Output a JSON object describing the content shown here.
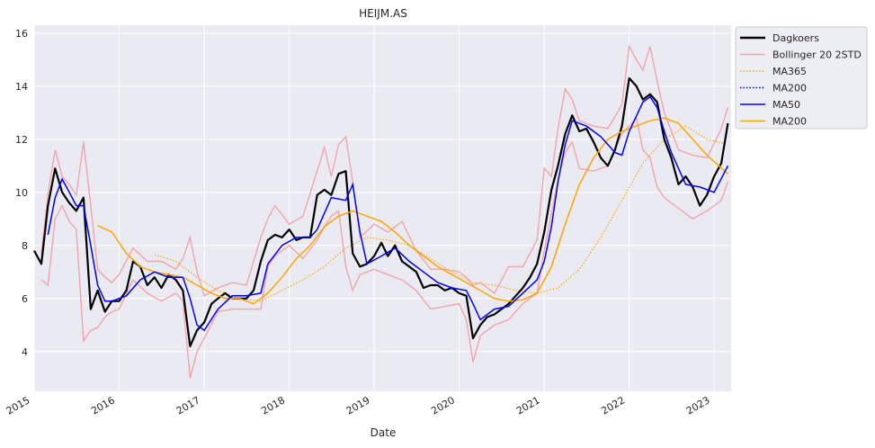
{
  "chart_data": {
    "type": "line",
    "title": "HEIJM.AS",
    "xlabel": "Date",
    "ylabel": "",
    "xlim": [
      "2015-01-01",
      "2023-03-15"
    ],
    "ylim": [
      2.5,
      16.3
    ],
    "x_ticks": [
      "2015",
      "2016",
      "2017",
      "2018",
      "2019",
      "2020",
      "2021",
      "2022",
      "2023"
    ],
    "y_ticks": [
      4,
      6,
      8,
      10,
      12,
      14,
      16
    ],
    "grid": true,
    "legend_position": "upper-right-outside",
    "legend": [
      {
        "label": "Dagkoers",
        "color": "#000000",
        "style": "solid-thick"
      },
      {
        "label": "Bollinger 20 2STD",
        "color": "#f4a4a8",
        "style": "solid"
      },
      {
        "label": "MA365",
        "color": "#ffa500",
        "style": "dotted"
      },
      {
        "label": "MA200",
        "color": "#0000ff",
        "style": "dotted"
      },
      {
        "label": "MA50",
        "color": "#0000ff",
        "style": "solid"
      },
      {
        "label": "MA200",
        "color": "#ffa500",
        "style": "solid"
      }
    ],
    "series": [
      {
        "name": "Dagkoers",
        "color": "#000000",
        "x": [
          "2015-01-01",
          "2015-02-01",
          "2015-03-01",
          "2015-04-01",
          "2015-05-01",
          "2015-06-01",
          "2015-07-01",
          "2015-08-01",
          "2015-09-01",
          "2015-10-01",
          "2015-11-01",
          "2015-12-01",
          "2016-01-01",
          "2016-02-01",
          "2016-03-01",
          "2016-04-01",
          "2016-05-01",
          "2016-06-01",
          "2016-07-01",
          "2016-08-01",
          "2016-09-01",
          "2016-10-01",
          "2016-11-01",
          "2016-12-01",
          "2017-01-01",
          "2017-02-01",
          "2017-03-01",
          "2017-04-01",
          "2017-05-01",
          "2017-06-01",
          "2017-07-01",
          "2017-08-01",
          "2017-09-01",
          "2017-10-01",
          "2017-11-01",
          "2017-12-01",
          "2018-01-01",
          "2018-02-01",
          "2018-03-01",
          "2018-04-01",
          "2018-05-01",
          "2018-06-01",
          "2018-07-01",
          "2018-08-01",
          "2018-09-01",
          "2018-10-01",
          "2018-11-01",
          "2018-12-01",
          "2019-01-01",
          "2019-02-01",
          "2019-03-01",
          "2019-04-01",
          "2019-05-01",
          "2019-06-01",
          "2019-07-01",
          "2019-08-01",
          "2019-09-01",
          "2019-10-01",
          "2019-11-01",
          "2019-12-01",
          "2020-01-01",
          "2020-02-01",
          "2020-03-01",
          "2020-04-01",
          "2020-05-01",
          "2020-06-01",
          "2020-07-01",
          "2020-08-01",
          "2020-09-01",
          "2020-10-01",
          "2020-11-01",
          "2020-12-01",
          "2021-01-01",
          "2021-02-01",
          "2021-03-01",
          "2021-04-01",
          "2021-05-01",
          "2021-06-01",
          "2021-07-01",
          "2021-08-01",
          "2021-09-01",
          "2021-10-01",
          "2021-11-01",
          "2021-12-01",
          "2022-01-01",
          "2022-02-01",
          "2022-03-01",
          "2022-04-01",
          "2022-05-01",
          "2022-06-01",
          "2022-07-01",
          "2022-08-01",
          "2022-09-01",
          "2022-10-01",
          "2022-11-01",
          "2022-12-01",
          "2023-01-01",
          "2023-02-01",
          "2023-03-01"
        ],
        "y": [
          7.8,
          7.3,
          9.5,
          10.9,
          10.0,
          9.6,
          9.3,
          9.8,
          5.6,
          6.3,
          5.5,
          5.9,
          5.9,
          6.3,
          7.4,
          7.2,
          6.5,
          6.8,
          6.4,
          6.9,
          6.7,
          6.3,
          4.2,
          4.8,
          5.1,
          5.8,
          6.0,
          6.2,
          6.0,
          6.0,
          6.0,
          6.3,
          7.4,
          8.2,
          8.4,
          8.3,
          8.6,
          8.2,
          8.3,
          8.3,
          9.9,
          10.1,
          9.9,
          10.7,
          10.8,
          7.7,
          7.2,
          7.3,
          7.6,
          8.1,
          7.6,
          8.0,
          7.4,
          7.2,
          7.0,
          6.4,
          6.5,
          6.5,
          6.3,
          6.4,
          6.2,
          6.1,
          4.5,
          5.0,
          5.3,
          5.4,
          5.6,
          5.8,
          6.1,
          6.4,
          6.8,
          7.3,
          8.5,
          10.1,
          11.0,
          12.2,
          12.9,
          12.3,
          12.4,
          11.9,
          11.3,
          11.0,
          11.6,
          12.5,
          14.3,
          14.0,
          13.5,
          13.7,
          13.4,
          12.0,
          11.3,
          10.3,
          10.6,
          10.2,
          9.5,
          9.9,
          10.6,
          11.1,
          12.6
        ]
      },
      {
        "name": "Bollinger 20 2STD",
        "color": "#f4a4a8",
        "x": [
          "2015-02-01",
          "2015-03-01",
          "2015-04-01",
          "2015-05-01",
          "2015-06-01",
          "2015-07-01",
          "2015-08-01",
          "2015-09-01",
          "2015-10-01",
          "2015-11-01",
          "2015-12-01",
          "2016-01-01",
          "2016-03-01",
          "2016-05-01",
          "2016-07-01",
          "2016-09-01",
          "2016-10-01",
          "2016-11-01",
          "2016-12-01",
          "2017-01-01",
          "2017-03-01",
          "2017-05-01",
          "2017-07-01",
          "2017-09-01",
          "2017-10-01",
          "2017-11-01",
          "2018-01-01",
          "2018-03-01",
          "2018-05-01",
          "2018-06-01",
          "2018-07-01",
          "2018-08-01",
          "2018-09-01",
          "2018-10-01",
          "2018-11-01",
          "2019-01-01",
          "2019-03-01",
          "2019-05-01",
          "2019-07-01",
          "2019-09-01",
          "2019-11-01",
          "2020-01-01",
          "2020-02-01",
          "2020-03-01",
          "2020-04-01",
          "2020-06-01",
          "2020-08-01",
          "2020-10-01",
          "2020-12-01",
          "2021-01-01",
          "2021-02-01",
          "2021-03-01",
          "2021-04-01",
          "2021-05-01",
          "2021-06-01",
          "2021-08-01",
          "2021-10-01",
          "2021-12-01",
          "2022-01-01",
          "2022-02-01",
          "2022-03-01",
          "2022-04-01",
          "2022-05-01",
          "2022-06-01",
          "2022-08-01",
          "2022-10-01",
          "2022-12-01",
          "2023-02-01",
          "2023-03-01"
        ],
        "upper": [
          7.7,
          9.9,
          11.6,
          10.6,
          10.3,
          9.9,
          11.9,
          9.5,
          7.1,
          6.8,
          6.6,
          6.9,
          7.9,
          7.4,
          7.4,
          7.1,
          7.5,
          8.3,
          7.0,
          6.1,
          6.4,
          6.6,
          6.5,
          8.3,
          9.0,
          9.5,
          8.8,
          9.1,
          10.8,
          11.7,
          10.6,
          11.8,
          12.1,
          10.4,
          8.3,
          8.8,
          8.5,
          8.9,
          7.8,
          7.1,
          7.1,
          7.0,
          6.8,
          6.5,
          6.6,
          6.2,
          7.2,
          7.2,
          8.2,
          10.9,
          10.6,
          12.4,
          13.9,
          13.5,
          12.7,
          12.5,
          12.4,
          13.3,
          15.5,
          15.0,
          14.6,
          15.5,
          14.2,
          13.0,
          11.6,
          11.4,
          11.3,
          12.4,
          13.2
        ],
        "lower": [
          6.7,
          6.5,
          9.0,
          9.5,
          8.9,
          8.6,
          4.4,
          4.8,
          4.9,
          5.3,
          5.5,
          5.6,
          6.7,
          6.2,
          5.9,
          6.2,
          5.9,
          3.0,
          4.0,
          4.5,
          5.5,
          5.6,
          5.6,
          5.6,
          7.2,
          7.6,
          8.0,
          7.5,
          8.2,
          8.7,
          9.1,
          9.3,
          7.2,
          6.3,
          6.9,
          7.1,
          6.9,
          6.7,
          6.3,
          5.6,
          5.7,
          5.8,
          5.2,
          3.6,
          4.6,
          5.0,
          5.2,
          5.8,
          6.2,
          7.8,
          9.2,
          10.5,
          11.5,
          11.9,
          10.9,
          10.8,
          11.0,
          12.2,
          12.5,
          12.8,
          11.6,
          11.3,
          10.2,
          9.8,
          9.4,
          9.0,
          9.3,
          9.7,
          10.4
        ]
      },
      {
        "name": "MA365",
        "color": "#ffa500",
        "x": [
          "2016-06-01",
          "2016-09-01",
          "2016-12-01",
          "2017-03-01",
          "2017-06-01",
          "2017-09-01",
          "2017-12-01",
          "2018-03-01",
          "2018-06-01",
          "2018-09-01",
          "2018-12-01",
          "2019-03-01",
          "2019-06-01",
          "2019-09-01",
          "2019-12-01",
          "2020-03-01",
          "2020-06-01",
          "2020-09-01",
          "2020-12-01",
          "2021-03-01",
          "2021-06-01",
          "2021-09-01",
          "2021-12-01",
          "2022-03-01",
          "2022-06-01",
          "2022-09-01",
          "2022-12-01",
          "2023-03-01"
        ],
        "y": [
          7.65,
          7.4,
          6.8,
          6.3,
          6.0,
          5.9,
          6.3,
          6.7,
          7.2,
          7.9,
          8.3,
          8.2,
          8.0,
          7.5,
          7.0,
          6.6,
          6.5,
          6.3,
          6.2,
          6.4,
          7.1,
          8.3,
          9.7,
          11.1,
          12.0,
          12.5,
          12.0,
          11.8
        ]
      },
      {
        "name": "MA50",
        "color": "#0000ff",
        "x": [
          "2015-03-01",
          "2015-04-01",
          "2015-05-01",
          "2015-06-01",
          "2015-07-01",
          "2015-08-01",
          "2015-09-01",
          "2015-10-01",
          "2015-11-01",
          "2015-12-01",
          "2016-02-01",
          "2016-04-01",
          "2016-06-01",
          "2016-08-01",
          "2016-10-01",
          "2016-11-01",
          "2016-12-01",
          "2017-01-01",
          "2017-03-01",
          "2017-05-01",
          "2017-07-01",
          "2017-09-01",
          "2017-10-01",
          "2017-12-01",
          "2018-02-01",
          "2018-04-01",
          "2018-05-01",
          "2018-07-01",
          "2018-09-01",
          "2018-10-01",
          "2018-11-01",
          "2018-12-01",
          "2019-02-01",
          "2019-04-01",
          "2019-06-01",
          "2019-08-01",
          "2019-10-01",
          "2019-12-01",
          "2020-02-01",
          "2020-03-01",
          "2020-04-01",
          "2020-06-01",
          "2020-08-01",
          "2020-10-01",
          "2020-12-01",
          "2021-01-01",
          "2021-02-01",
          "2021-03-01",
          "2021-04-01",
          "2021-05-01",
          "2021-07-01",
          "2021-09-01",
          "2021-11-01",
          "2021-12-01",
          "2022-01-01",
          "2022-03-01",
          "2022-04-01",
          "2022-05-01",
          "2022-06-01",
          "2022-07-01",
          "2022-09-01",
          "2022-11-01",
          "2023-01-01",
          "2023-03-01"
        ],
        "y": [
          8.4,
          9.8,
          10.5,
          10.0,
          9.5,
          9.5,
          8.0,
          6.5,
          5.9,
          5.9,
          6.1,
          6.7,
          7.0,
          6.8,
          6.8,
          6.0,
          5.0,
          4.8,
          5.6,
          6.1,
          6.1,
          6.2,
          7.3,
          8.0,
          8.3,
          8.3,
          8.6,
          9.8,
          9.7,
          10.3,
          8.5,
          7.3,
          7.6,
          7.9,
          7.4,
          7.0,
          6.6,
          6.4,
          6.3,
          5.8,
          5.2,
          5.6,
          5.7,
          6.2,
          6.7,
          7.4,
          8.7,
          10.4,
          11.8,
          12.7,
          12.5,
          12.1,
          11.5,
          11.4,
          12.3,
          13.4,
          13.6,
          13.2,
          12.3,
          11.5,
          10.3,
          10.2,
          10.0,
          11.0
        ]
      },
      {
        "name": "MA200",
        "color": "#ffa500",
        "x": [
          "2015-10-01",
          "2015-12-01",
          "2016-02-01",
          "2016-04-01",
          "2016-06-01",
          "2016-08-01",
          "2016-10-01",
          "2016-12-01",
          "2017-02-01",
          "2017-04-01",
          "2017-06-01",
          "2017-08-01",
          "2017-10-01",
          "2017-12-01",
          "2018-02-01",
          "2018-04-01",
          "2018-06-01",
          "2018-08-01",
          "2018-10-01",
          "2018-12-01",
          "2019-02-01",
          "2019-04-01",
          "2019-06-01",
          "2019-08-01",
          "2019-10-01",
          "2019-12-01",
          "2020-02-01",
          "2020-04-01",
          "2020-06-01",
          "2020-08-01",
          "2020-10-01",
          "2020-12-01",
          "2021-02-01",
          "2021-04-01",
          "2021-06-01",
          "2021-08-01",
          "2021-10-01",
          "2021-12-01",
          "2022-02-01",
          "2022-04-01",
          "2022-06-01",
          "2022-08-01",
          "2022-10-01",
          "2022-12-01",
          "2023-03-01"
        ],
        "y": [
          8.75,
          8.5,
          7.7,
          7.2,
          7.0,
          6.9,
          6.8,
          6.5,
          6.2,
          6.0,
          6.0,
          5.8,
          6.2,
          6.8,
          7.5,
          8.0,
          8.7,
          9.1,
          9.3,
          9.1,
          8.9,
          8.5,
          8.0,
          7.6,
          7.2,
          6.9,
          6.6,
          6.3,
          6.0,
          5.9,
          5.95,
          6.2,
          7.2,
          8.8,
          10.3,
          11.3,
          12.0,
          12.3,
          12.5,
          12.7,
          12.8,
          12.6,
          12.0,
          11.4,
          10.7
        ]
      }
    ]
  }
}
